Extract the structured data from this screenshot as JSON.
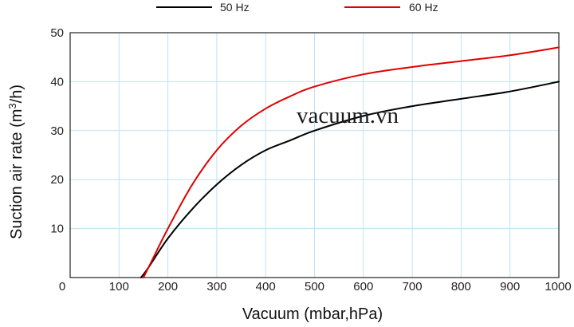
{
  "chart_data": {
    "type": "line",
    "title": "",
    "xlabel": "Vacuum (mbar,hPa)",
    "ylabel_main": "Suction air rate (m",
    "ylabel_sup": "3",
    "ylabel_end": "/h)",
    "xlim": [
      0,
      1000
    ],
    "ylim": [
      0,
      50
    ],
    "x_ticks": [
      0,
      100,
      200,
      300,
      400,
      500,
      600,
      700,
      800,
      900,
      1000
    ],
    "y_ticks": [
      10,
      20,
      30,
      40,
      50
    ],
    "grid": true,
    "legend_placement": "top",
    "watermark": "vacuum.vn",
    "series": [
      {
        "name": "50 Hz",
        "color": "#000000",
        "x": [
          145,
          160,
          200,
          250,
          300,
          350,
          400,
          450,
          500,
          600,
          700,
          800,
          900,
          1000
        ],
        "y": [
          0,
          2,
          8,
          14,
          19,
          23,
          26,
          28,
          30,
          33,
          35,
          36.5,
          38,
          40
        ]
      },
      {
        "name": "60 Hz",
        "color": "#e00000",
        "x": [
          150,
          165,
          200,
          250,
          300,
          350,
          400,
          450,
          500,
          600,
          700,
          800,
          900,
          1000
        ],
        "y": [
          0,
          3,
          10,
          19,
          26,
          31,
          34.5,
          37,
          39,
          41.5,
          43,
          44.2,
          45.4,
          47
        ]
      }
    ]
  }
}
